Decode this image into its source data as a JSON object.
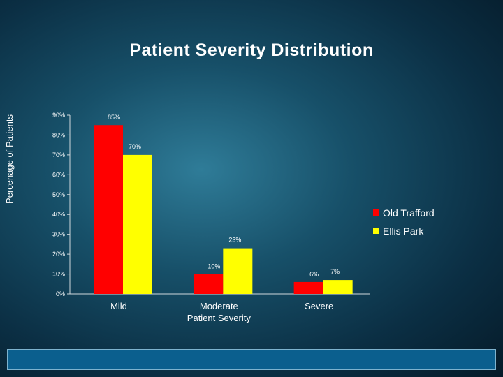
{
  "chart_data": {
    "type": "bar",
    "title": "Patient Severity Distribution",
    "ylabel": "Percenage of Patients",
    "xlabel": "Patient  Severity",
    "categories": [
      "Mild",
      "Moderate",
      "Severe"
    ],
    "ylim": [
      0,
      90
    ],
    "yticks": [
      "0%",
      "10%",
      "20%",
      "30%",
      "40%",
      "50%",
      "60%",
      "70%",
      "80%",
      "90%"
    ],
    "series": [
      {
        "name": "Old Trafford",
        "color": "#ff0000",
        "values": [
          85,
          10,
          6
        ],
        "labels": [
          "85%",
          "10%",
          "6%"
        ]
      },
      {
        "name": "Ellis Park",
        "color": "#ffff00",
        "values": [
          70,
          23,
          7
        ],
        "labels": [
          "70%",
          "23%",
          "7%"
        ]
      }
    ],
    "legend_position": "right"
  }
}
